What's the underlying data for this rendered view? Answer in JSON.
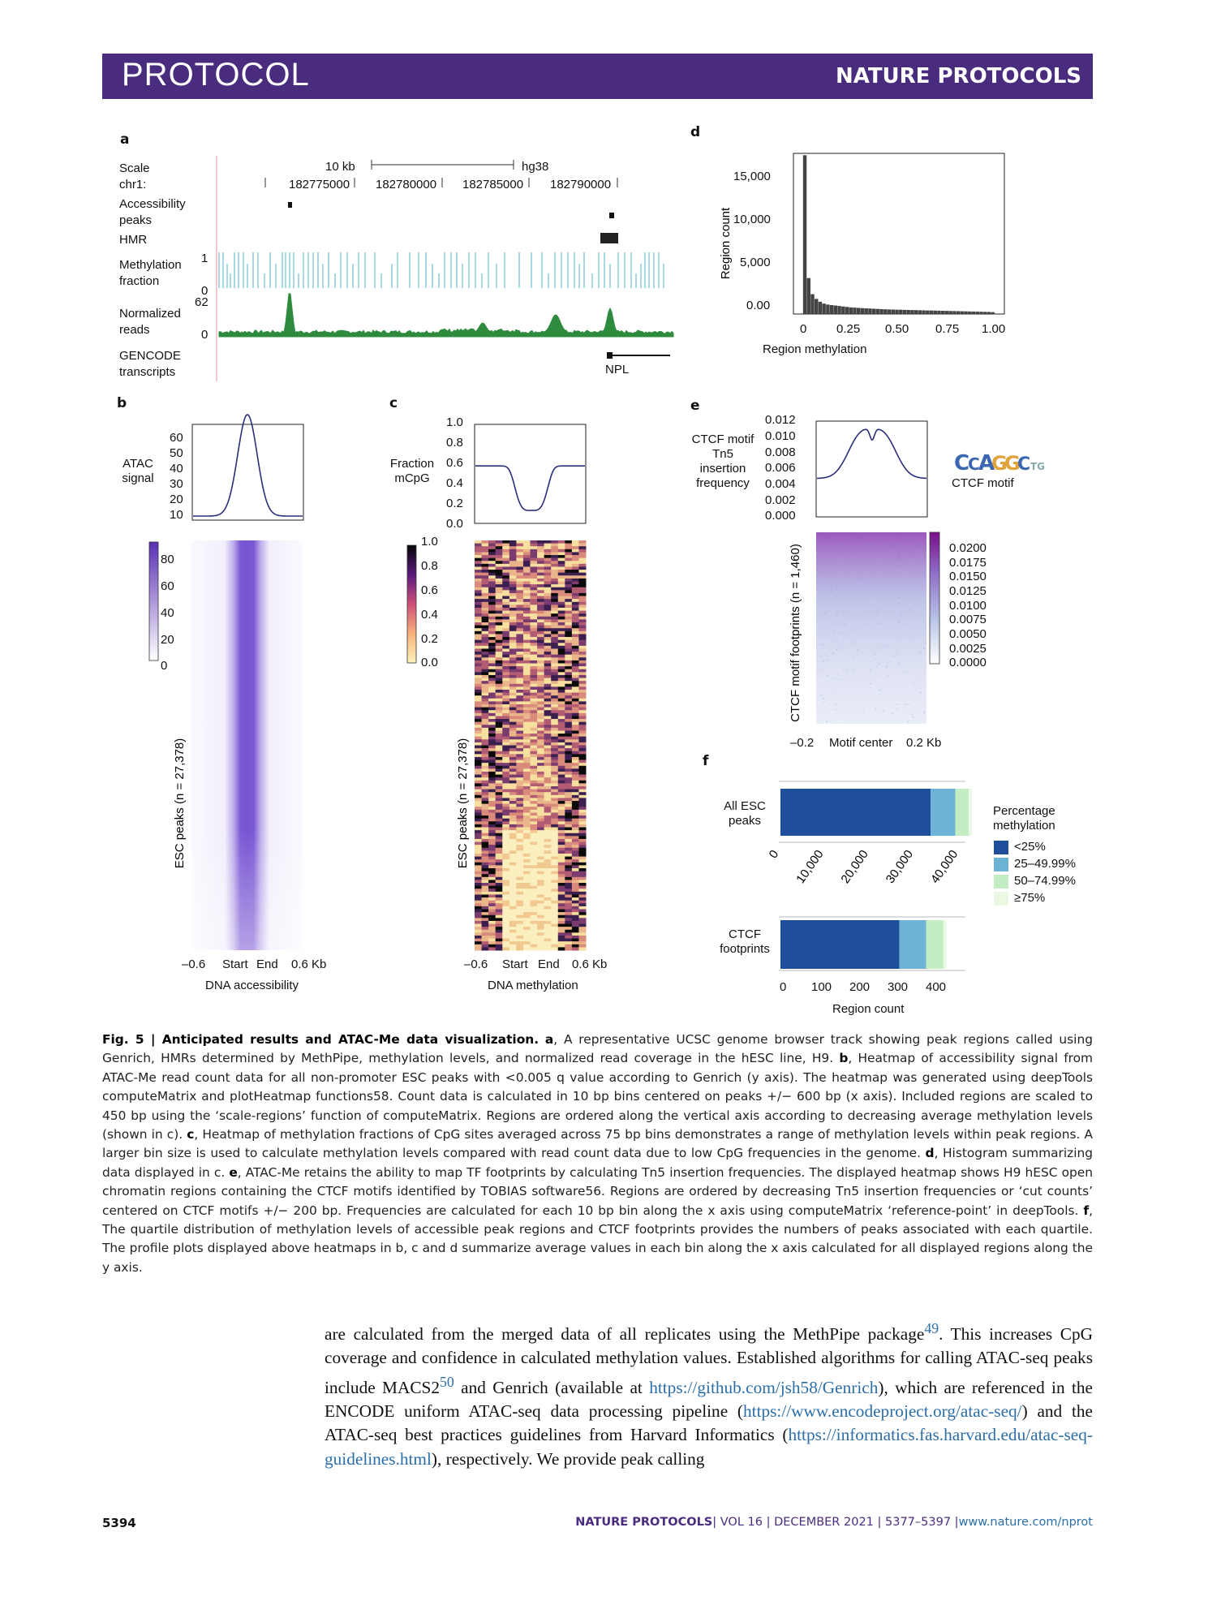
{
  "header": {
    "section": "PROTOCOL",
    "journal": "NATURE PROTOCOLS"
  },
  "panels": {
    "a": "a",
    "b": "b",
    "c": "c",
    "d": "d",
    "e": "e",
    "f": "f"
  },
  "panel_a": {
    "track_labels": [
      "Scale",
      "chr1:",
      "Accessibility",
      "peaks",
      "HMR",
      "Methylation",
      "fraction",
      "Normalized",
      "reads",
      "GENCODE",
      "transcripts"
    ],
    "scale_text": "10 kb",
    "assembly": "hg38",
    "positions": [
      "182775000",
      "182780000",
      "182785000",
      "182790000"
    ],
    "meth_ticks": [
      "1",
      "0"
    ],
    "reads_ticks": [
      "62",
      "0"
    ],
    "gene": "NPL"
  },
  "panel_b": {
    "profile_ylabel": [
      "ATAC",
      "signal"
    ],
    "profile_yticks": [
      "60",
      "50",
      "40",
      "30",
      "20",
      "10"
    ],
    "colorbar_ticks": [
      "80",
      "60",
      "40",
      "20",
      "0"
    ],
    "heatmap_ylabel": "ESC peaks (n = 27,378)",
    "xticks": [
      "–0.6",
      "Start",
      "End",
      "0.6 Kb"
    ],
    "xlabel": "DNA accessibility"
  },
  "panel_c": {
    "profile_ylabel": [
      "Fraction",
      "mCpG"
    ],
    "profile_yticks": [
      "1.0",
      "0.8",
      "0.6",
      "0.4",
      "0.2",
      "0.0"
    ],
    "colorbar_ticks": [
      "1.0",
      "0.8",
      "0.6",
      "0.4",
      "0.2",
      "0.0"
    ],
    "heatmap_ylabel": "ESC peaks (n = 27,378)",
    "xticks": [
      "–0.6",
      "Start",
      "End",
      "0.6 Kb"
    ],
    "xlabel": "DNA methylation"
  },
  "panel_e": {
    "profile_ylabel": [
      "CTCF motif",
      "Tn5",
      "insertion",
      "frequency"
    ],
    "profile_yticks": [
      "0.012",
      "0.010",
      "0.008",
      "0.006",
      "0.004",
      "0.002",
      "0.000"
    ],
    "motif_label": "CTCF motif",
    "colorbar_ticks": [
      "0.0200",
      "0.0175",
      "0.0150",
      "0.0125",
      "0.0100",
      "0.0075",
      "0.0050",
      "0.0025",
      "0.0000"
    ],
    "heatmap_ylabel": "CTCF motif footprints (n = 1,460)",
    "xticks": [
      "–0.2",
      "Motif center",
      "0.2 Kb"
    ]
  },
  "chart_data": [
    {
      "type": "bar",
      "panel": "d",
      "title": "",
      "xlabel": "Region methylation",
      "ylabel": "Region count",
      "xticks": [
        "0",
        "0.25",
        "0.50",
        "0.75",
        "1.00"
      ],
      "yticks": [
        "0.00",
        "5,000",
        "10,000",
        "15,000"
      ],
      "ylim": [
        0,
        17000
      ],
      "xlim": [
        -0.05,
        1.05
      ],
      "bin_width": 0.02,
      "values": [
        16800,
        3800,
        2100,
        1600,
        1300,
        1100,
        1000,
        950,
        900,
        850,
        800,
        750,
        700,
        680,
        650,
        620,
        600,
        580,
        560,
        540,
        520,
        500,
        480,
        470,
        460,
        450,
        440,
        430,
        420,
        410,
        400,
        390,
        380,
        370,
        360,
        350,
        340,
        330,
        320,
        310,
        300,
        290,
        280,
        270,
        260,
        250,
        240,
        230,
        220,
        200
      ]
    },
    {
      "type": "bar",
      "panel": "f",
      "orientation": "horizontal",
      "stacked": true,
      "categories": [
        "All ESC peaks",
        "CTCF footprints"
      ],
      "category_lines": [
        [
          "All ESC",
          "peaks"
        ],
        [
          "CTCF",
          "footprints"
        ]
      ],
      "legend_title": [
        "Percentage",
        "methylation"
      ],
      "series": [
        {
          "name": "<25%",
          "values": [
            33500,
            310
          ],
          "color": "#1f4e9c"
        },
        {
          "name": "25–49.99%",
          "values": [
            5500,
            70
          ],
          "color": "#6db3d6"
        },
        {
          "name": "50–74.99%",
          "values": [
            3000,
            45
          ],
          "color": "#c4edc4"
        },
        {
          "name": "≥75%",
          "values": [
            700,
            8
          ],
          "color": "#eaf8e4"
        }
      ],
      "top_xticks": [
        "0",
        "10,000",
        "20,000",
        "30,000",
        "40,000"
      ],
      "bottom_xticks": [
        "0",
        "100",
        "200",
        "300",
        "400"
      ],
      "xlabel": "Region count"
    }
  ],
  "caption": {
    "fig": "Fig. 5 | Anticipated results and ATAC-Me data visualization.",
    "text": [
      {
        "b": "a",
        "t": ", A representative UCSC genome browser track showing peak regions called using Genrich, HMRs determined by MethPipe, methylation levels, and normalized read coverage in the hESC line, H9. "
      },
      {
        "b": "b",
        "t": ", Heatmap of accessibility signal from ATAC-Me read count data for all non-promoter ESC peaks with <0.005 q value according to Genrich (y axis). The heatmap was generated using deepTools computeMatrix and plotHeatmap functions58. Count data is calculated in 10 bp bins centered on peaks +/− 600 bp (x axis). Included regions are scaled to 450 bp using the ‘scale-regions’ function of computeMatrix. Regions are ordered along the vertical axis according to decreasing average methylation levels (shown in c). "
      },
      {
        "b": "c",
        "t": ", Heatmap of methylation fractions of CpG sites averaged across 75 bp bins demonstrates a range of methylation levels within peak regions. A larger bin size is used to calculate methylation levels compared with read count data due to low CpG frequencies in the genome. "
      },
      {
        "b": "d",
        "t": ", Histogram summarizing data displayed in c. "
      },
      {
        "b": "e",
        "t": ", ATAC-Me retains the ability to map TF footprints by calculating Tn5 insertion frequencies. The displayed heatmap shows H9 hESC open chromatin regions containing the CTCF motifs identified by TOBIAS software56. Regions are ordered by decreasing Tn5 insertion frequencies or ‘cut counts’ centered on CTCF motifs +/− 200 bp. Frequencies are calculated for each 10 bp bin along the x axis using computeMatrix ‘reference-point’ in deepTools. "
      },
      {
        "b": "f",
        "t": ", The quartile distribution of methylation levels of accessible peak regions and CTCF footprints provides the numbers of peaks associated with each quartile. The profile plots displayed above heatmaps in b, c and d summarize average values in each bin along the x axis calculated for all displayed regions along the y axis."
      }
    ]
  },
  "body": {
    "p1": "are calculated from the merged data of all replicates using the MethPipe package",
    "ref1": "49",
    "p2": ". This increases CpG coverage and confidence in calculated methylation values. Established algorithms for calling ATAC-seq peaks include MACS2",
    "ref2": "50",
    "p3": " and Genrich (available at ",
    "link1": "https://github.com/jsh58/Genrich",
    "p4": "), which are referenced in the ENCODE uniform ATAC-seq data processing pipeline (",
    "link2": "https://www.encodeproject.org/atac-seq/",
    "p5": ") and the ATAC-seq best practices guidelines from Harvard Informatics (",
    "link3": "https://informatics.fas.harvard.edu/atac-seq-guidelines.html",
    "p6": "), respectively. We provide peak calling"
  },
  "footer": {
    "page": "5394",
    "journal": "NATURE PROTOCOLS",
    "issue": "| VOL 16 | DECEMBER 2021 | 5377–5397 |",
    "url": "www.nature.com/nprot"
  }
}
